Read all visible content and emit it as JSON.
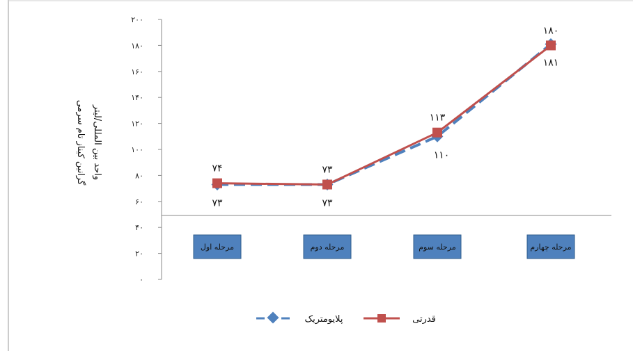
{
  "chart_data": {
    "type": "line",
    "title": "",
    "ylabel_lines": [
      "گرانین کیناز تام سرمی",
      "واحد بین المللی/لیتر"
    ],
    "ylim": [
      0,
      200
    ],
    "ytick_step": 20,
    "ytick_labels": [
      "۰",
      "۲۰",
      "۴۰",
      "۶۰",
      "۸۰",
      "۱۰۰",
      "۱۲۰",
      "۱۴۰",
      "۱۶۰",
      "۱۸۰",
      "۲۰۰"
    ],
    "categories": [
      "مرحله اول",
      "مرحله دوم",
      "مرحله سوم",
      "مرحله چهارم"
    ],
    "category_colors": {
      "box": "#4f81bd",
      "box_border": "#2f5d8c"
    },
    "legend_position": "bottom",
    "grid": false,
    "series": [
      {
        "name": "پلایومتریک",
        "values": [
          73,
          73,
          110,
          181
        ],
        "value_labels": [
          "۷۳",
          "۷۳",
          "۱۱۰",
          "۱۸۱"
        ],
        "color": "#4f81bd",
        "marker": "diamond",
        "dash": true
      },
      {
        "name": "قدرتی",
        "values": [
          74,
          73,
          113,
          180
        ],
        "value_labels": [
          "۷۴",
          "۷۳",
          "۱۱۳",
          "۱۸۰"
        ],
        "color": "#c0504d",
        "marker": "square",
        "dash": false
      }
    ]
  }
}
